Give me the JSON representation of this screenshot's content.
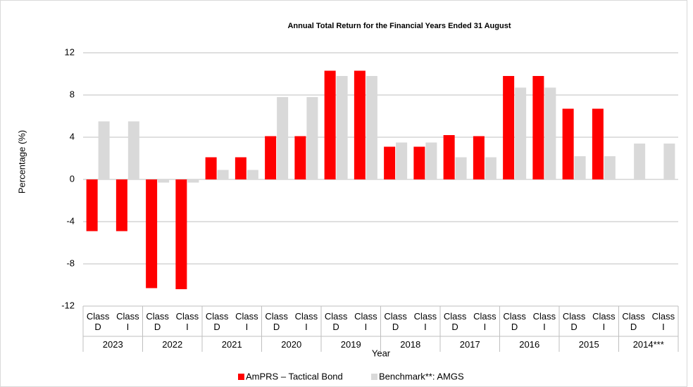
{
  "chart_data": {
    "type": "bar",
    "title": "Annual Total Return for the Financial Years Ended 31 August",
    "x_label": "Year",
    "y_label": "Percentage (%)",
    "categories": [
      "Class D",
      "Class I",
      "Class D",
      "Class I",
      "Class D",
      "Class I",
      "Class D",
      "Class I",
      "Class D",
      "Class I",
      "Class D",
      "Class I",
      "Class D",
      "Class I",
      "Class D",
      "Class I",
      "Class D",
      "Class I",
      "Class D",
      "Class I"
    ],
    "groups": [
      "2023",
      "2022",
      "2021",
      "2020",
      "2019",
      "2018",
      "2017",
      "2016",
      "2015",
      "2014***"
    ],
    "series": [
      {
        "name": "AmPRS – Tactical Bond",
        "color": "#ff0000",
        "values": [
          -4.9,
          -4.9,
          -10.3,
          -10.4,
          2.1,
          2.1,
          4.1,
          4.1,
          10.3,
          10.3,
          3.1,
          3.1,
          4.2,
          4.1,
          9.8,
          9.8,
          6.7,
          6.7,
          null,
          null
        ]
      },
      {
        "name": "Benchmark**: AMGS",
        "color": "#d9d9d9",
        "values": [
          5.5,
          5.5,
          -0.3,
          -0.3,
          0.9,
          0.9,
          7.8,
          7.8,
          9.8,
          9.8,
          3.5,
          3.5,
          2.1,
          2.1,
          8.7,
          8.7,
          2.2,
          2.2,
          3.4,
          3.4
        ]
      }
    ],
    "ylim": [
      -12,
      12
    ],
    "yticks": [
      -12,
      -8,
      -4,
      0,
      4,
      8,
      12
    ],
    "grid": true,
    "legend": "bottom"
  }
}
